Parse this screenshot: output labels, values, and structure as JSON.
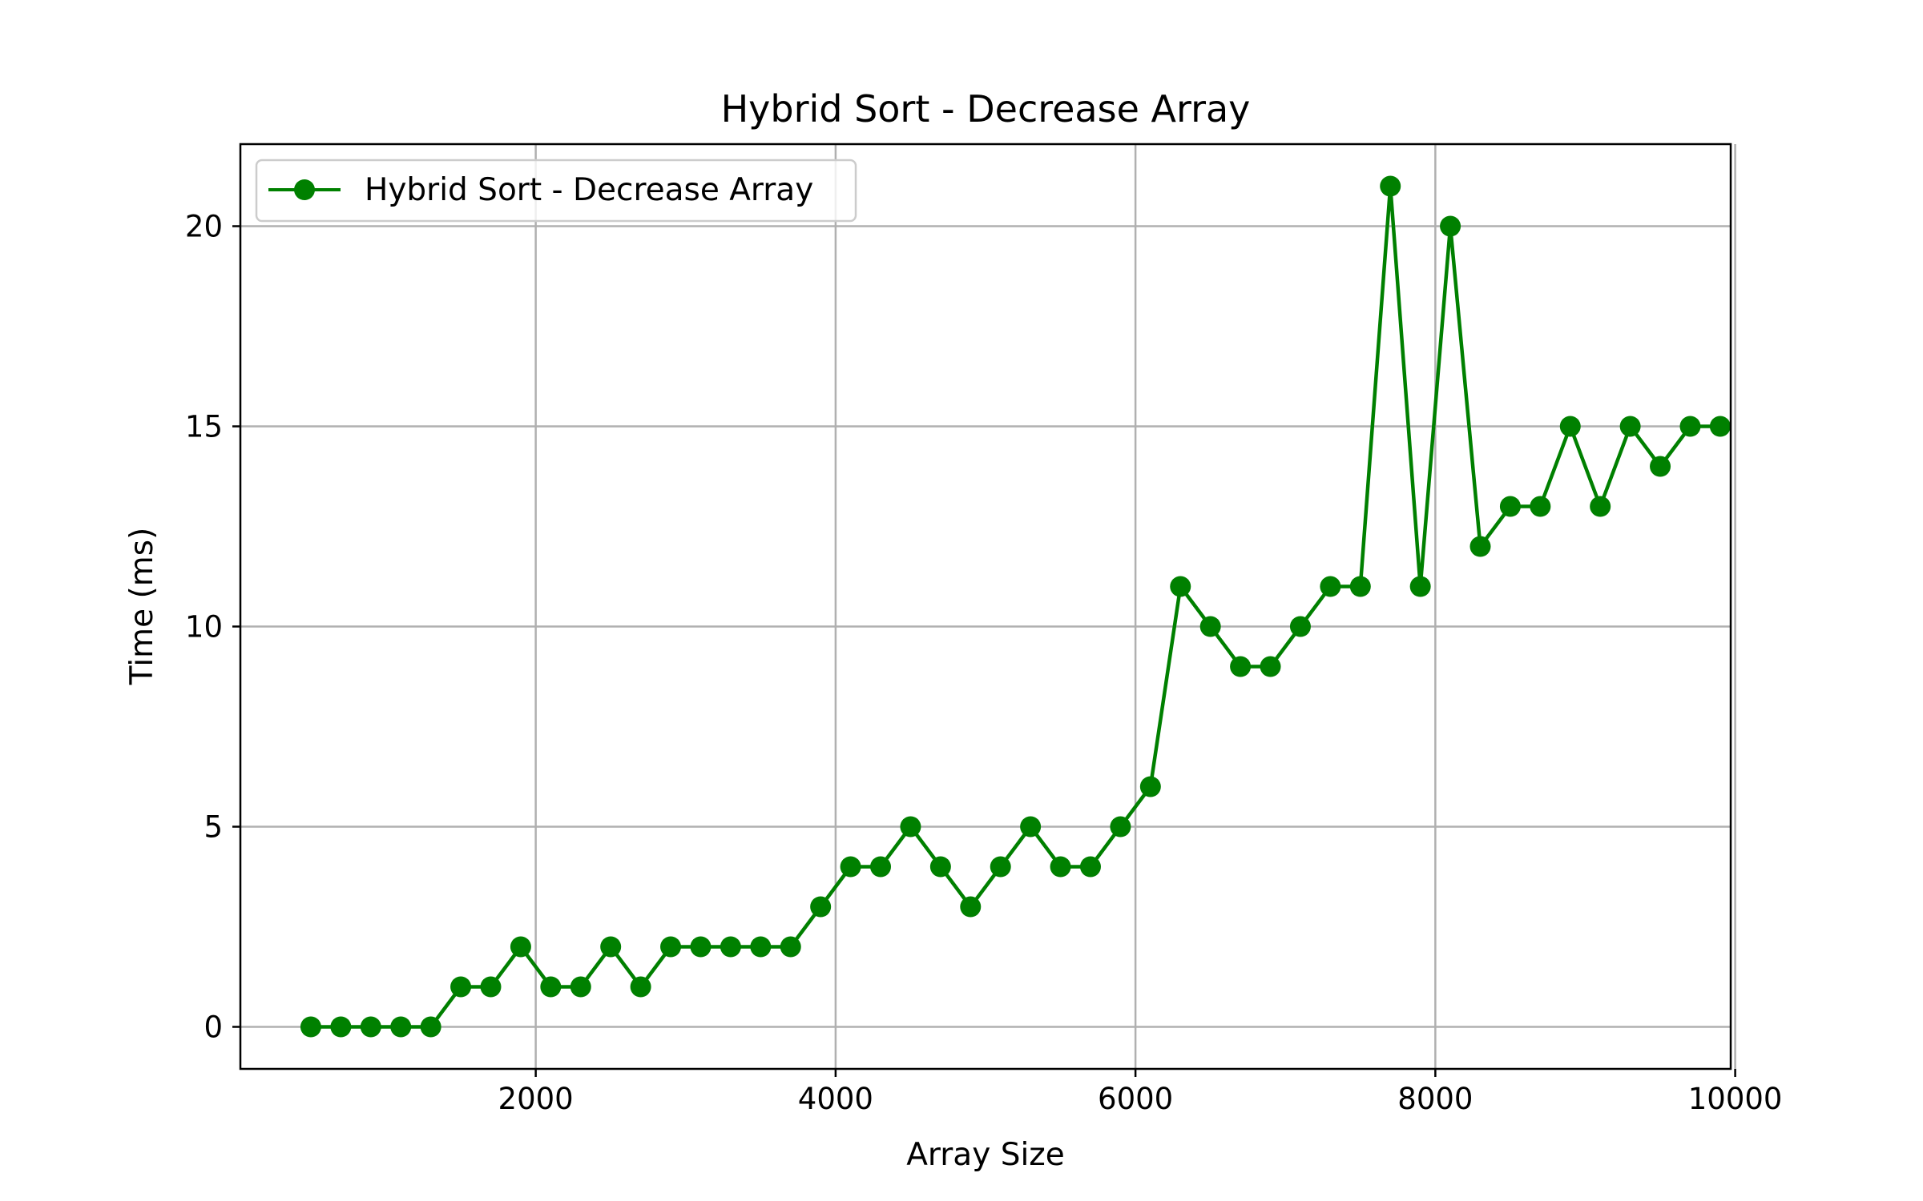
{
  "chart_data": {
    "type": "line",
    "title": "Hybrid Sort - Decrease Array",
    "xlabel": "Array Size",
    "ylabel": "Time (ms)",
    "xlim": [
      30,
      9970
    ],
    "ylim": [
      -1.05,
      22.05
    ],
    "xticks": [
      2000,
      4000,
      6000,
      8000,
      10000
    ],
    "xtick_labels": [
      "2000",
      "4000",
      "6000",
      "8000",
      "10000"
    ],
    "yticks": [
      0,
      5,
      10,
      15,
      20
    ],
    "ytick_labels": [
      "0",
      "5",
      "10",
      "15",
      "20"
    ],
    "grid": true,
    "legend": "upper left",
    "series": [
      {
        "name": "Hybrid Sort - Decrease Array",
        "color": "#008000",
        "marker": "circle",
        "x": [
          500,
          700,
          900,
          1100,
          1300,
          1500,
          1700,
          1900,
          2100,
          2300,
          2500,
          2700,
          2900,
          3100,
          3300,
          3500,
          3700,
          3900,
          4100,
          4300,
          4500,
          4700,
          4900,
          5100,
          5300,
          5500,
          5700,
          5900,
          6100,
          6300,
          6500,
          6700,
          6900,
          7100,
          7300,
          7500,
          7700,
          7900,
          8100,
          8300,
          8500,
          8700,
          8900,
          9100,
          9300,
          9500,
          9700,
          9900
        ],
        "values": [
          0,
          0,
          0,
          0,
          0,
          1,
          1,
          2,
          1,
          1,
          2,
          1,
          2,
          2,
          2,
          2,
          2,
          3,
          4,
          4,
          5,
          4,
          3,
          4,
          5,
          4,
          4,
          5,
          6,
          11,
          10,
          9,
          9,
          10,
          11,
          11,
          21,
          11,
          20,
          12,
          13,
          13,
          15,
          13,
          15,
          14,
          15,
          15
        ]
      }
    ]
  }
}
